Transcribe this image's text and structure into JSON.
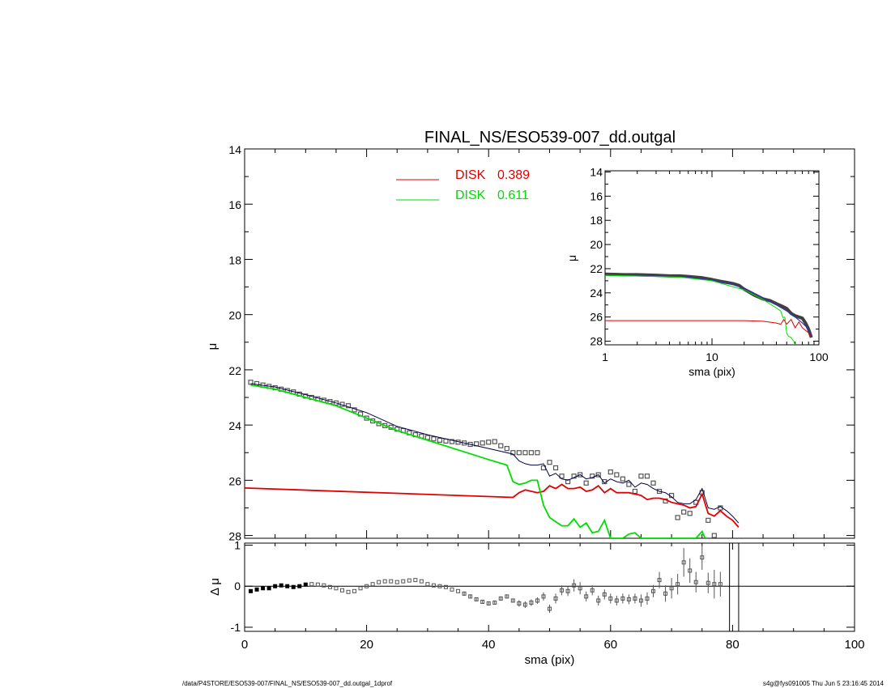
{
  "chart_data": [
    {
      "id": "main",
      "type": "line",
      "title": "FINAL_NS/ESO539-007_dd.outgal",
      "xlabel": "",
      "ylabel": "μ",
      "xlim": [
        0,
        100
      ],
      "ylim": [
        28.1,
        14
      ],
      "y_inverted": true,
      "xticks": [
        0,
        20,
        40,
        60,
        80,
        100
      ],
      "yticks": [
        14,
        16,
        18,
        20,
        22,
        24,
        26,
        28
      ],
      "legend": [
        {
          "label": "DISK",
          "value": "0.389",
          "color": "#e00000"
        },
        {
          "label": "DISK",
          "value": "0.611",
          "color": "#00dd00"
        }
      ],
      "legend_placement": "top-center",
      "series": [
        {
          "role": "data",
          "marker": "square",
          "color": "#555555",
          "x": [
            1,
            2,
            3,
            4,
            5,
            6,
            7,
            8,
            9,
            10,
            11,
            12,
            13,
            14,
            15,
            16,
            17,
            18,
            19,
            20,
            21,
            22,
            23,
            24,
            25,
            26,
            27,
            28,
            29,
            30,
            31,
            32,
            33,
            34,
            35,
            36,
            37,
            38,
            39,
            40,
            41,
            42,
            43,
            44,
            45,
            46,
            47,
            48,
            49,
            50,
            51,
            52,
            53,
            54,
            55,
            56,
            57,
            58,
            59,
            60,
            61,
            62,
            63,
            64,
            65,
            66,
            67,
            68,
            69,
            70,
            71,
            72,
            73,
            74,
            75,
            76,
            77,
            78
          ],
          "y": [
            22.45,
            22.5,
            22.55,
            22.6,
            22.65,
            22.7,
            22.75,
            22.8,
            22.88,
            22.95,
            23.0,
            23.05,
            23.1,
            23.15,
            23.2,
            23.25,
            23.3,
            23.45,
            23.6,
            23.75,
            23.85,
            23.95,
            24.02,
            24.08,
            24.15,
            24.2,
            24.28,
            24.35,
            24.4,
            24.45,
            24.5,
            24.55,
            24.58,
            24.6,
            24.62,
            24.65,
            24.7,
            24.68,
            24.65,
            24.62,
            24.6,
            24.75,
            24.85,
            25.0,
            25.0,
            25.0,
            25.0,
            25.0,
            25.55,
            25.35,
            25.55,
            25.85,
            26.05,
            25.85,
            25.8,
            26.1,
            25.85,
            25.8,
            26.05,
            25.7,
            25.8,
            25.95,
            26.15,
            26.4,
            25.85,
            25.85,
            26.1,
            26.4,
            26.75,
            26.55,
            27.35,
            27.15,
            27.2,
            26.8,
            26.45,
            27.45,
            28.0,
            27.0
          ],
          "errors": []
        },
        {
          "role": "total model",
          "color": "#000040",
          "x": [
            1,
            5,
            10,
            15,
            20,
            25,
            30,
            35,
            40,
            44,
            45,
            46,
            47,
            48,
            49,
            50,
            51,
            52,
            53,
            54,
            55,
            56,
            57,
            58,
            59,
            60,
            61,
            62,
            63,
            64,
            65,
            66,
            67,
            68,
            69,
            70,
            71,
            72,
            73,
            74,
            75,
            76,
            77,
            78,
            79,
            80,
            81
          ],
          "y": [
            22.5,
            22.62,
            22.9,
            23.2,
            23.55,
            24.05,
            24.35,
            24.6,
            24.85,
            25.05,
            25.3,
            25.4,
            25.45,
            25.45,
            25.4,
            25.85,
            25.75,
            25.95,
            26.0,
            25.9,
            25.8,
            25.95,
            25.9,
            25.8,
            26.1,
            25.95,
            26.05,
            26.1,
            26.0,
            26.25,
            26.1,
            26.15,
            26.3,
            26.4,
            26.45,
            26.6,
            26.8,
            26.85,
            26.85,
            26.7,
            26.3,
            27.0,
            27.05,
            26.95,
            27.1,
            27.3,
            27.55
          ]
        },
        {
          "role": "DISK 0.389",
          "color": "#e00000",
          "x": [
            0,
            44,
            45,
            46,
            47,
            48,
            49,
            50,
            51,
            52,
            53,
            54,
            55,
            56,
            57,
            58,
            59,
            60,
            61,
            62,
            63,
            64,
            65,
            66,
            67,
            68,
            69,
            70,
            71,
            72,
            73,
            74,
            75,
            76,
            77,
            78,
            79,
            80,
            81
          ],
          "y": [
            26.28,
            26.62,
            26.45,
            26.35,
            26.4,
            26.45,
            26.4,
            26.2,
            26.3,
            26.15,
            26.3,
            26.3,
            26.25,
            26.4,
            26.35,
            26.2,
            26.45,
            26.3,
            26.45,
            26.45,
            26.45,
            26.5,
            26.55,
            26.7,
            26.65,
            26.65,
            26.7,
            26.8,
            26.85,
            26.9,
            27.0,
            26.95,
            26.5,
            27.2,
            27.3,
            27.1,
            27.3,
            27.45,
            27.7
          ]
        },
        {
          "role": "DISK 0.611",
          "color": "#00dd00",
          "x": [
            1,
            5,
            10,
            15,
            20,
            25,
            30,
            35,
            40,
            43,
            44,
            45,
            46,
            47,
            48,
            49,
            50,
            51,
            52,
            53,
            54,
            55,
            56,
            57,
            58,
            59,
            60,
            61,
            62,
            63,
            64,
            65,
            74,
            75,
            75.5
          ],
          "y": [
            22.55,
            22.7,
            23.0,
            23.3,
            23.75,
            24.2,
            24.55,
            24.9,
            25.25,
            25.45,
            26.05,
            26.15,
            26.1,
            26.0,
            26.0,
            26.9,
            27.35,
            27.5,
            27.65,
            27.65,
            27.4,
            27.7,
            27.55,
            27.9,
            27.85,
            27.45,
            28.1,
            28.1,
            28.1,
            27.95,
            27.9,
            28.1,
            28.1,
            27.85,
            28.1
          ]
        }
      ]
    },
    {
      "id": "inset",
      "type": "line",
      "title": "",
      "xlabel": "sma (pix)",
      "ylabel": "μ",
      "x_scale": "log",
      "xlim": [
        1,
        100
      ],
      "ylim": [
        28.3,
        13.9
      ],
      "y_inverted": true,
      "xticks": [
        1,
        10,
        100
      ],
      "yticks": [
        14,
        16,
        18,
        20,
        22,
        24,
        26,
        28
      ],
      "series": [
        {
          "role": "data",
          "color": "#000000",
          "x": [
            1,
            1.5,
            2,
            3,
            4,
            5,
            6,
            8,
            10,
            12,
            14,
            16,
            18,
            20,
            25,
            30,
            35,
            40,
            45,
            50,
            55,
            60,
            65,
            70,
            75,
            80,
            85
          ],
          "y": [
            22.45,
            22.5,
            22.5,
            22.55,
            22.6,
            22.6,
            22.65,
            22.75,
            22.9,
            23.05,
            23.15,
            23.25,
            23.4,
            23.7,
            24.2,
            24.5,
            24.65,
            24.9,
            25.1,
            25.3,
            25.7,
            25.9,
            26.0,
            26.1,
            26.5,
            27.0,
            27.7
          ]
        },
        {
          "role": "total model",
          "color": "#3333aa",
          "x": [
            1,
            2,
            4,
            6,
            10,
            15,
            20,
            30,
            40,
            50,
            60,
            70,
            80,
            85
          ],
          "y": [
            22.55,
            22.6,
            22.65,
            22.7,
            22.95,
            23.25,
            23.6,
            24.4,
            25.0,
            25.5,
            26.0,
            26.5,
            27.0,
            27.6
          ]
        },
        {
          "role": "DISK 0.389",
          "color": "#e00000",
          "x": [
            1,
            10,
            20,
            30,
            40,
            44,
            47,
            50,
            55,
            60,
            65,
            70,
            75,
            80,
            85
          ],
          "y": [
            26.3,
            26.3,
            26.3,
            26.35,
            26.5,
            26.6,
            26.2,
            26.6,
            26.2,
            26.9,
            26.4,
            26.9,
            27.1,
            27.3,
            27.7
          ]
        },
        {
          "role": "DISK 0.611",
          "color": "#00dd00",
          "x": [
            1,
            5,
            10,
            20,
            30,
            40,
            44,
            46,
            48,
            50,
            52,
            55,
            58,
            60
          ],
          "y": [
            22.55,
            22.7,
            23.0,
            23.75,
            24.55,
            25.25,
            25.5,
            26.05,
            26.0,
            27.35,
            27.6,
            27.7,
            28.0,
            28.3
          ]
        }
      ]
    },
    {
      "id": "residual",
      "type": "scatter",
      "xlabel": "sma (pix)",
      "ylabel": "Δ μ",
      "xlim": [
        0,
        100
      ],
      "ylim": [
        -1.1,
        1.05
      ],
      "xticks": [
        0,
        20,
        40,
        60,
        80,
        100
      ],
      "yticks": [
        1,
        0,
        -1
      ],
      "zero_line": true,
      "vertical_lines": [
        79.5,
        81
      ],
      "series": [
        {
          "role": "residual",
          "color": "#555555",
          "x": [
            1,
            2,
            3,
            4,
            5,
            6,
            7,
            8,
            9,
            10,
            11,
            12,
            13,
            14,
            15,
            16,
            17,
            18,
            19,
            20,
            21,
            22,
            23,
            24,
            25,
            26,
            27,
            28,
            29,
            30,
            31,
            32,
            33,
            34,
            35,
            36,
            37,
            38,
            39,
            40,
            41,
            42,
            43,
            44,
            45,
            46,
            47,
            48,
            49,
            50,
            51,
            52,
            53,
            54,
            55,
            56,
            57,
            58,
            59,
            60,
            61,
            62,
            63,
            64,
            65,
            66,
            67,
            68,
            69,
            70,
            71,
            72,
            73,
            74,
            75,
            76,
            77,
            78
          ],
          "y": [
            -0.12,
            -0.08,
            -0.05,
            -0.05,
            0.0,
            0.02,
            0.0,
            -0.02,
            0.0,
            0.04,
            0.05,
            0.04,
            0.02,
            -0.02,
            -0.05,
            -0.1,
            -0.14,
            -0.12,
            -0.05,
            0.0,
            0.05,
            0.1,
            0.12,
            0.12,
            0.1,
            0.12,
            0.14,
            0.15,
            0.12,
            0.05,
            0.02,
            0.0,
            -0.02,
            -0.08,
            -0.12,
            -0.18,
            -0.25,
            -0.32,
            -0.38,
            -0.42,
            -0.4,
            -0.3,
            -0.25,
            -0.35,
            -0.42,
            -0.45,
            -0.4,
            -0.35,
            -0.25,
            -0.55,
            -0.3,
            -0.1,
            -0.12,
            0.02,
            -0.05,
            -0.25,
            -0.1,
            -0.35,
            -0.2,
            -0.3,
            -0.35,
            -0.3,
            -0.32,
            -0.3,
            -0.35,
            -0.3,
            -0.12,
            0.15,
            -0.18,
            -0.05,
            0.05,
            0.58,
            0.38,
            0.1,
            0.7,
            0.08,
            0.05,
            0.05
          ],
          "errors": [
            0.03,
            0.03,
            0.03,
            0.03,
            0.03,
            0.03,
            0.03,
            0.03,
            0.03,
            0.04,
            0.04,
            0.04,
            0.04,
            0.04,
            0.04,
            0.04,
            0.04,
            0.04,
            0.04,
            0.04,
            0.04,
            0.04,
            0.04,
            0.04,
            0.04,
            0.04,
            0.04,
            0.04,
            0.04,
            0.04,
            0.04,
            0.04,
            0.04,
            0.04,
            0.04,
            0.05,
            0.05,
            0.05,
            0.05,
            0.05,
            0.05,
            0.05,
            0.05,
            0.05,
            0.08,
            0.08,
            0.08,
            0.08,
            0.1,
            0.1,
            0.12,
            0.12,
            0.12,
            0.15,
            0.15,
            0.12,
            0.12,
            0.12,
            0.12,
            0.12,
            0.12,
            0.12,
            0.12,
            0.12,
            0.15,
            0.15,
            0.15,
            0.2,
            0.2,
            0.25,
            0.25,
            0.35,
            0.3,
            0.25,
            0.3,
            0.25,
            0.35,
            0.3
          ]
        }
      ]
    }
  ],
  "footer": {
    "path": "/data/P4STORE/ESO539-007/FINAL_NS/ESO539-007_dd.outgal_1dprof",
    "stamp": "s4g@fys091005  Thu Jun  5 23:16:45 2014"
  }
}
